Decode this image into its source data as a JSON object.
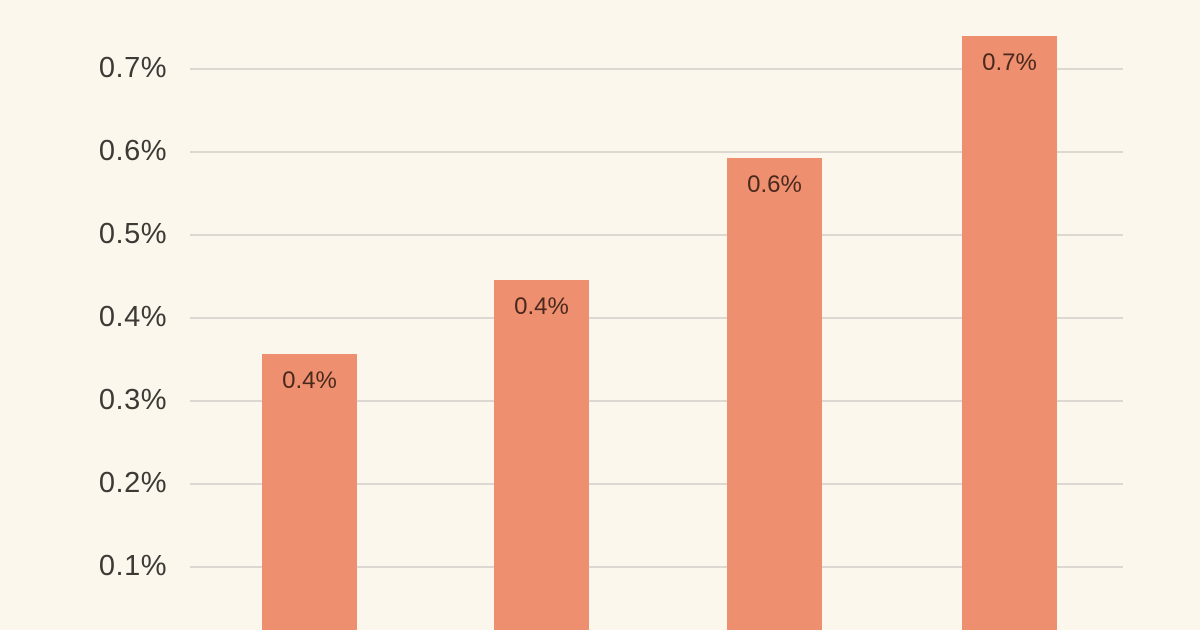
{
  "chart_data": {
    "type": "bar",
    "title": "",
    "xlabel": "",
    "ylabel": "",
    "grid": true,
    "legend": false,
    "note": "chart is cropped: no x-axis category labels or title visible; bars run off the bottom edge",
    "y_ticks": [
      {
        "label": "0.7%",
        "value": 0.7
      },
      {
        "label": "0.6%",
        "value": 0.6
      },
      {
        "label": "0.5%",
        "value": 0.5
      },
      {
        "label": "0.4%",
        "value": 0.4
      },
      {
        "label": "0.3%",
        "value": 0.3
      },
      {
        "label": "0.2%",
        "value": 0.2
      },
      {
        "label": "0.1%",
        "value": 0.1
      }
    ],
    "ylim_visible": [
      0.075,
      0.78
    ],
    "bars": [
      {
        "label": "0.4%",
        "value": 0.357
      },
      {
        "label": "0.4%",
        "value": 0.446
      },
      {
        "label": "0.6%",
        "value": 0.593
      },
      {
        "label": "0.7%",
        "value": 0.74
      }
    ],
    "colors": {
      "background": "#FBF7ED",
      "bar": "#EE8F70",
      "gridline": "#DCD8D1",
      "tick_label": "#3D3A36",
      "bar_label": "#4A291D"
    }
  }
}
